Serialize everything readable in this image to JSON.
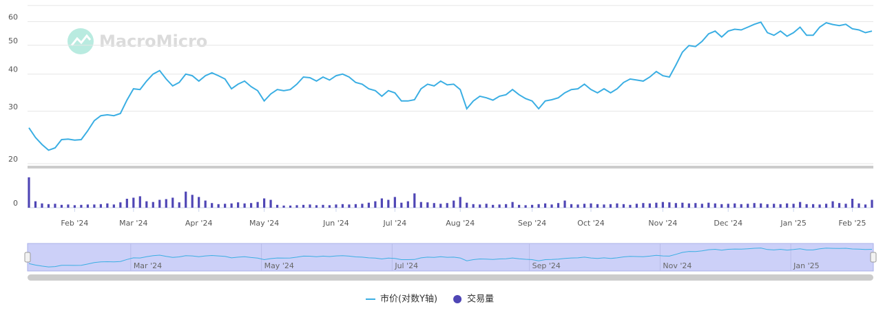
{
  "watermark": "MacroMicro",
  "chart_data": {
    "type": "line",
    "log_scale": true,
    "grid": true,
    "categories": [
      null,
      null,
      null,
      null,
      null,
      null,
      null,
      "Feb '24",
      null,
      null,
      null,
      null,
      null,
      null,
      null,
      null,
      "Mar '24",
      null,
      null,
      null,
      null,
      null,
      null,
      null,
      null,
      null,
      "Apr '24",
      null,
      null,
      null,
      null,
      null,
      null,
      null,
      null,
      null,
      "May '24",
      null,
      null,
      null,
      null,
      null,
      null,
      null,
      null,
      null,
      null,
      "Jun '24",
      null,
      null,
      null,
      null,
      null,
      null,
      null,
      null,
      "Jul '24",
      null,
      null,
      null,
      null,
      null,
      null,
      null,
      null,
      null,
      "Aug '24",
      null,
      null,
      null,
      null,
      null,
      null,
      null,
      null,
      null,
      null,
      "Sep '24",
      null,
      null,
      null,
      null,
      null,
      null,
      null,
      null,
      "Oct '24",
      null,
      null,
      null,
      null,
      null,
      null,
      null,
      null,
      null,
      null,
      "Nov '24",
      null,
      null,
      null,
      null,
      null,
      null,
      null,
      null,
      null,
      "Dec '24",
      null,
      null,
      null,
      null,
      null,
      null,
      null,
      null,
      null,
      "Jan '25",
      null,
      null,
      null,
      null,
      null,
      null,
      null,
      null,
      "Feb '25",
      null,
      null,
      null
    ],
    "ylim": [
      20,
      68
    ],
    "yticks": [
      20,
      30,
      40,
      50,
      60
    ],
    "y2lim": [
      0,
      10
    ],
    "y2ticks": [
      0
    ],
    "series": [
      {
        "name": "市价(对数Y轴)",
        "color": "#3aaee3",
        "values": [
          26.4,
          24.5,
          23.2,
          22.2,
          22.6,
          24.1,
          24.2,
          24.0,
          24.1,
          25.8,
          27.9,
          29.0,
          29.2,
          29.0,
          29.5,
          32.7,
          35.7,
          35.5,
          37.9,
          40.0,
          41.1,
          38.5,
          36.5,
          37.5,
          40.0,
          39.5,
          37.9,
          39.5,
          40.4,
          39.5,
          38.5,
          35.7,
          37.0,
          37.9,
          36.3,
          35.2,
          32.5,
          34.3,
          35.5,
          35.2,
          35.5,
          37.0,
          39.1,
          38.9,
          37.9,
          39.1,
          38.2,
          39.5,
          40.0,
          39.1,
          37.5,
          37.0,
          35.7,
          35.2,
          33.7,
          35.2,
          34.6,
          32.5,
          32.5,
          32.8,
          35.7,
          37.0,
          36.5,
          37.9,
          36.8,
          37.0,
          35.5,
          30.6,
          32.5,
          33.7,
          33.3,
          32.7,
          33.7,
          34.1,
          35.5,
          34.1,
          33.1,
          32.5,
          30.6,
          32.5,
          32.8,
          33.3,
          34.6,
          35.5,
          35.7,
          37.0,
          35.5,
          34.6,
          35.7,
          34.6,
          35.7,
          37.5,
          38.5,
          38.2,
          37.9,
          39.1,
          40.8,
          39.5,
          39.1,
          42.9,
          47.4,
          49.9,
          49.5,
          51.5,
          54.6,
          55.8,
          53.3,
          55.8,
          56.6,
          56.3,
          57.5,
          58.8,
          59.8,
          55.1,
          54.0,
          55.8,
          53.6,
          55.1,
          57.5,
          54.0,
          54.0,
          57.5,
          59.5,
          58.7,
          58.2,
          58.8,
          56.8,
          56.3,
          55.1,
          55.8
        ]
      },
      {
        "name": "交易量",
        "color": "#4f46b5",
        "axis": "y2",
        "values": [
          8.5,
          1.8,
          1.2,
          1.0,
          1.1,
          0.8,
          0.9,
          0.7,
          0.8,
          0.9,
          0.9,
          1.0,
          1.2,
          0.9,
          1.5,
          2.5,
          2.8,
          3.2,
          1.8,
          1.6,
          2.2,
          2.4,
          2.8,
          1.5,
          4.5,
          3.6,
          3.0,
          2.0,
          1.3,
          1.0,
          1.1,
          1.2,
          1.5,
          1.2,
          1.3,
          1.6,
          2.6,
          2.2,
          0.8,
          0.6,
          0.6,
          0.7,
          0.8,
          0.9,
          0.7,
          0.8,
          0.7,
          0.9,
          1.0,
          0.9,
          1.0,
          1.1,
          1.4,
          1.8,
          2.6,
          2.2,
          3.0,
          1.4,
          1.8,
          4.0,
          1.6,
          1.5,
          1.3,
          1.1,
          1.3,
          2.0,
          3.0,
          1.4,
          1.0,
          0.9,
          1.1,
          0.8,
          0.9,
          1.0,
          1.6,
          0.8,
          0.7,
          0.8,
          1.0,
          1.2,
          0.9,
          1.3,
          2.0,
          1.0,
          0.9,
          1.1,
          1.2,
          1.0,
          0.9,
          1.0,
          1.2,
          1.0,
          0.8,
          1.1,
          1.3,
          1.2,
          1.4,
          1.6,
          1.5,
          1.3,
          1.4,
          1.2,
          1.3,
          1.1,
          1.4,
          1.2,
          1.0,
          1.1,
          1.2,
          1.0,
          1.1,
          1.3,
          1.2,
          1.0,
          1.1,
          1.0,
          1.2,
          1.1,
          1.6,
          1.0,
          1.0,
          0.9,
          1.1,
          1.8,
          1.3,
          1.1,
          2.5,
          1.2,
          0.9,
          2.2
        ]
      }
    ]
  }
}
